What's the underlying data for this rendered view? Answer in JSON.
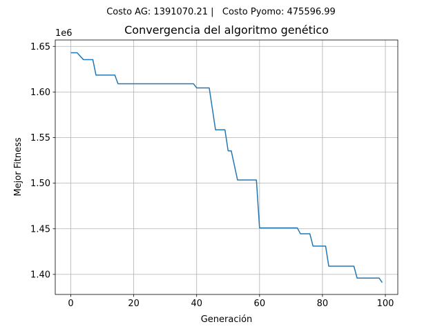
{
  "header_note": "Costo AG: 1391070.21 |   Costo Pyomo: 475596.99",
  "colors": {
    "note": "#008000",
    "line": "#1f77b4",
    "grid": "#b0b0b0",
    "axes": "#000000"
  },
  "chart_data": {
    "type": "line",
    "title": "Convergencia del algoritmo genético",
    "xlabel": "Generación",
    "ylabel": "Mejor Fitness",
    "y_offset_label": "1e6",
    "grid": true,
    "xlim": [
      -4.95,
      103.95
    ],
    "ylim": [
      1.378,
      1.657
    ],
    "x_ticks": [
      0,
      20,
      40,
      60,
      80,
      100
    ],
    "y_ticks": [
      1.4,
      1.45,
      1.5,
      1.55,
      1.6,
      1.65
    ],
    "x_tick_labels": [
      "0",
      "20",
      "40",
      "60",
      "80",
      "100"
    ],
    "y_tick_labels": [
      "1.40",
      "1.45",
      "1.50",
      "1.55",
      "1.60",
      "1.65"
    ],
    "series": [
      {
        "x": [
          0,
          2,
          4,
          7,
          8,
          14,
          15,
          39,
          40,
          44,
          46,
          49,
          50,
          51,
          53,
          54,
          59,
          60,
          72,
          73,
          76,
          77,
          81,
          82,
          90,
          91,
          98,
          99
        ],
        "y": [
          1.643,
          1.643,
          1.6355,
          1.6355,
          1.6185,
          1.6185,
          1.609,
          1.609,
          1.6045,
          1.6045,
          1.5585,
          1.5585,
          1.5355,
          1.5355,
          1.5035,
          1.5035,
          1.5035,
          1.451,
          1.451,
          1.4445,
          1.4445,
          1.431,
          1.431,
          1.409,
          1.409,
          1.396,
          1.396,
          1.391
        ]
      }
    ]
  }
}
